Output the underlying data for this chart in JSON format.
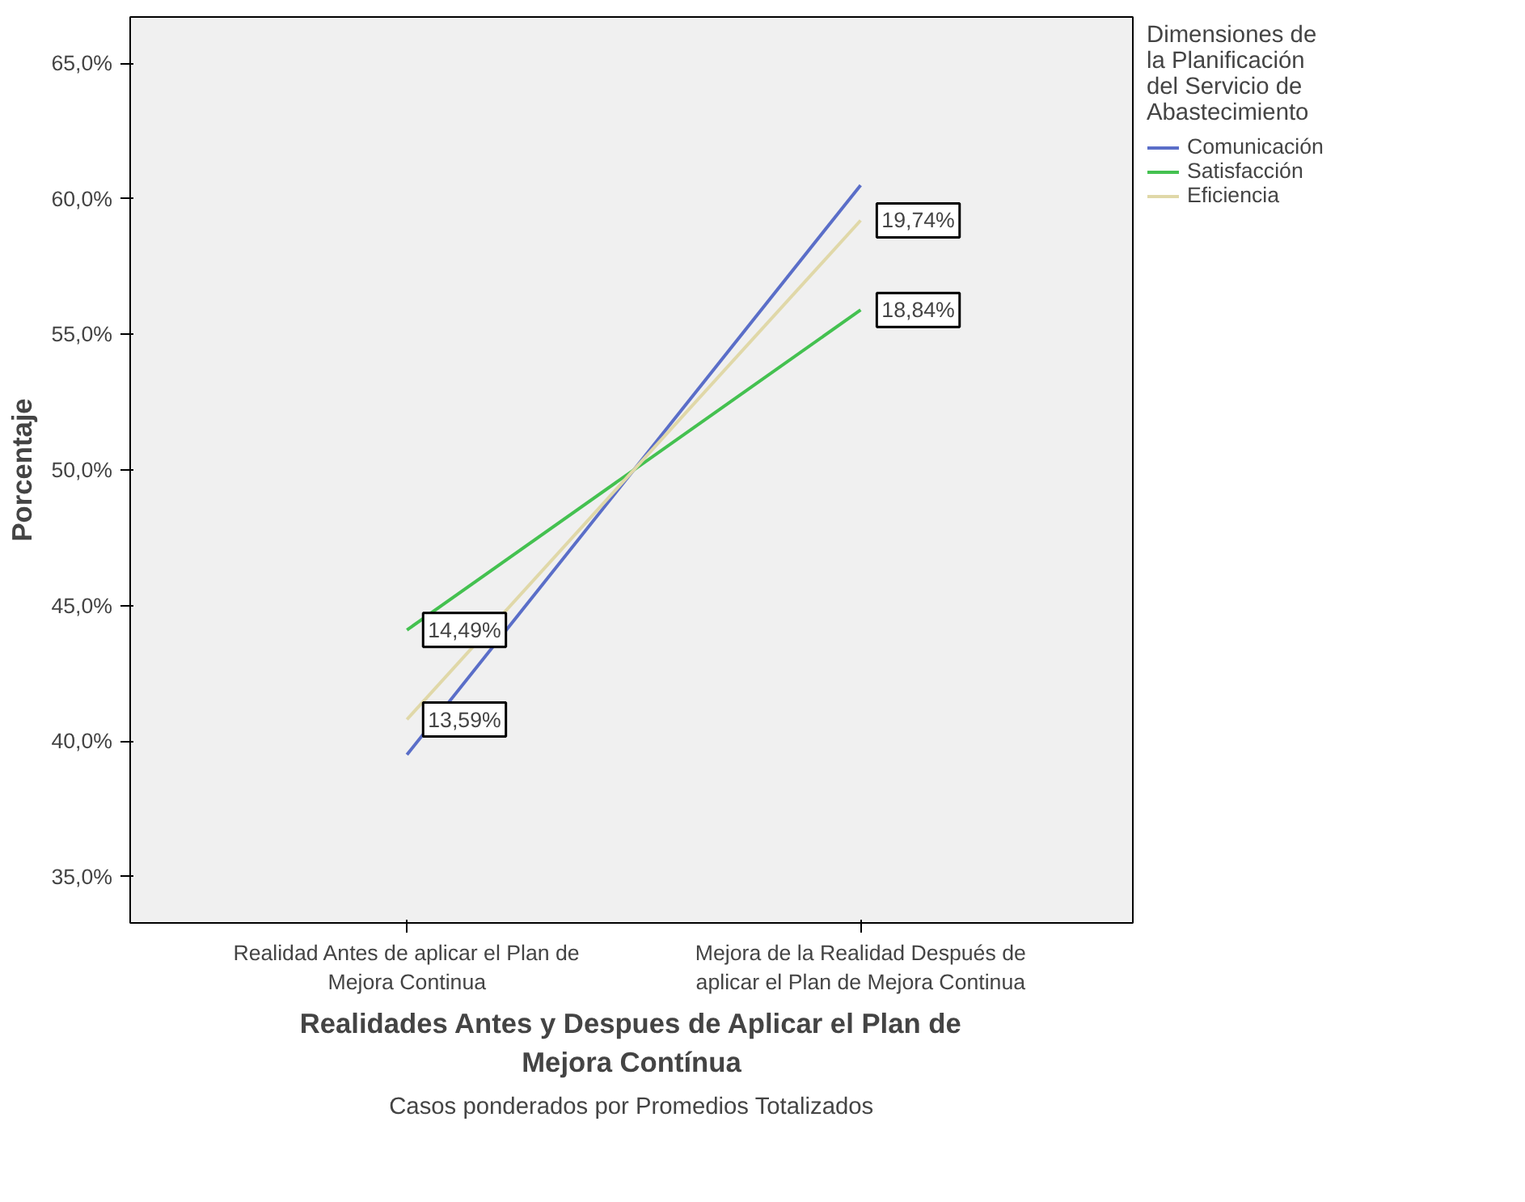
{
  "chart_data": {
    "type": "line",
    "xlabel": "Realidades Antes y Despues de Aplicar el Plan de Mejora Contínua",
    "ylabel": "Porcentaje",
    "legend_title": "Dimensiones de la Planificación del Servicio de Abastecimiento",
    "categories": [
      "Realidad Antes de aplicar el Plan de Mejora Continua",
      "Mejora de la Realidad Después de aplicar el Plan de Mejora Continua"
    ],
    "series": [
      {
        "name": "Comunicación",
        "color": "#5a6ec8",
        "values": [
          39.5,
          60.5
        ]
      },
      {
        "name": "Satisfacción",
        "color": "#44c150",
        "values": [
          44.1,
          55.9
        ]
      },
      {
        "name": "Eficiencia",
        "color": "#e0d8a8",
        "values": [
          40.8,
          59.2
        ]
      }
    ],
    "ylim": [
      33.3,
      66.7
    ],
    "yticks": [
      {
        "value": 35,
        "label": "35,0%"
      },
      {
        "value": 40,
        "label": "40,0%"
      },
      {
        "value": 45,
        "label": "45,0%"
      },
      {
        "value": 50,
        "label": "50,0%"
      },
      {
        "value": 55,
        "label": "55,0%"
      },
      {
        "value": 60,
        "label": "60,0%"
      },
      {
        "value": 65,
        "label": "65,0%"
      }
    ],
    "grid": false,
    "legend": "top right",
    "marker": "none",
    "line_style": "solid",
    "annotations": [
      {
        "text": "14,49%",
        "x": "Realidad Antes de aplicar el Plan de Mejora Continua",
        "y": 44.1
      },
      {
        "text": "13,59%",
        "x": "Realidad Antes de aplicar el Plan de Mejora Continua",
        "y": 40.8
      },
      {
        "text": "19,74%",
        "x": "Mejora de la Realidad Después de aplicar el Plan de Mejora Continua",
        "y": 59.2
      },
      {
        "text": "18,84%",
        "x": "Mejora de la Realidad Después de aplicar el Plan de Mejora Continua",
        "y": 55.9
      },
      "Casos ponderados por Promedios Totalizados"
    ]
  }
}
